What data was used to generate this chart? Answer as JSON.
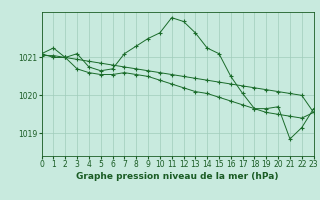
{
  "title": "Graphe pression niveau de la mer (hPa)",
  "x_ticks": [
    0,
    1,
    2,
    3,
    4,
    5,
    6,
    7,
    8,
    9,
    10,
    11,
    12,
    13,
    14,
    15,
    16,
    17,
    18,
    19,
    20,
    21,
    22,
    23
  ],
  "y_ticks": [
    1019,
    1020,
    1021
  ],
  "ylim": [
    1018.4,
    1022.2
  ],
  "xlim": [
    0,
    23
  ],
  "bg_color": "#c8eade",
  "grid_color": "#a0ccbb",
  "line_color": "#1a6b2a",
  "series": [
    [
      1021.1,
      1021.25,
      1021.0,
      1021.1,
      1020.75,
      1020.65,
      1020.7,
      1021.1,
      1021.3,
      1021.5,
      1021.65,
      1022.05,
      1021.95,
      1021.65,
      1021.25,
      1021.1,
      1020.5,
      1020.05,
      1019.65,
      1019.65,
      1019.7,
      1018.85,
      1019.15,
      1019.65
    ],
    [
      1021.1,
      1021.0,
      1021.0,
      1020.7,
      1020.6,
      1020.55,
      1020.55,
      1020.6,
      1020.55,
      1020.5,
      1020.4,
      1020.3,
      1020.2,
      1020.1,
      1020.05,
      1019.95,
      1019.85,
      1019.75,
      1019.65,
      1019.55,
      1019.5,
      1019.45,
      1019.4,
      1019.55
    ],
    [
      1021.05,
      1021.05,
      1021.0,
      1020.95,
      1020.9,
      1020.85,
      1020.8,
      1020.75,
      1020.7,
      1020.65,
      1020.6,
      1020.55,
      1020.5,
      1020.45,
      1020.4,
      1020.35,
      1020.3,
      1020.25,
      1020.2,
      1020.15,
      1020.1,
      1020.05,
      1020.0,
      1019.55
    ]
  ],
  "tick_fontsize": 5.5,
  "label_fontsize": 6.5,
  "tick_color": "#1a5c24",
  "label_color": "#1a5c24"
}
